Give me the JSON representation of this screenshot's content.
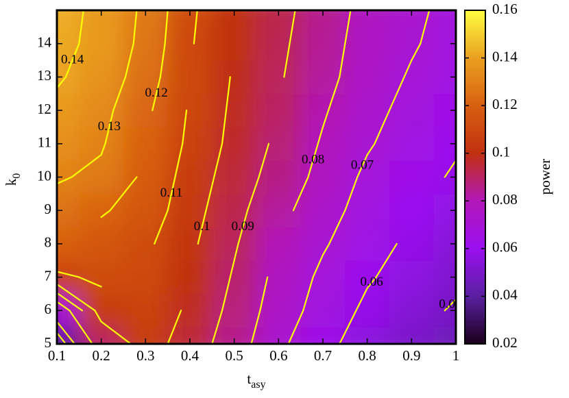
{
  "chart_data": {
    "type": "heatmap",
    "xlabel": "t",
    "xlabel_sub": "asy",
    "ylabel": "k",
    "ylabel_sub": "0",
    "colorbar_label": "power",
    "x": [
      0.1,
      0.2,
      0.3,
      0.4,
      0.5,
      0.6,
      0.7,
      0.8,
      0.9,
      1
    ],
    "y": [
      5,
      6,
      7,
      8,
      9,
      10,
      11,
      12,
      13,
      14,
      15
    ],
    "z": [
      [
        0.04,
        0.09,
        0.105,
        0.095,
        0.085,
        0.072,
        0.063,
        0.055,
        0.05,
        0.046
      ],
      [
        0.07,
        0.105,
        0.108,
        0.098,
        0.087,
        0.075,
        0.066,
        0.058,
        0.053,
        0.049
      ],
      [
        0.108,
        0.112,
        0.11,
        0.1,
        0.089,
        0.077,
        0.068,
        0.061,
        0.056,
        0.052
      ],
      [
        0.12,
        0.116,
        0.112,
        0.102,
        0.091,
        0.08,
        0.071,
        0.064,
        0.058,
        0.054
      ],
      [
        0.126,
        0.121,
        0.116,
        0.104,
        0.093,
        0.083,
        0.074,
        0.066,
        0.06,
        0.057
      ],
      [
        0.131,
        0.128,
        0.118,
        0.106,
        0.095,
        0.086,
        0.077,
        0.068,
        0.063,
        0.059
      ],
      [
        0.135,
        0.131,
        0.12,
        0.108,
        0.097,
        0.088,
        0.079,
        0.071,
        0.065,
        0.061
      ],
      [
        0.138,
        0.133,
        0.122,
        0.109,
        0.098,
        0.09,
        0.081,
        0.073,
        0.067,
        0.063
      ],
      [
        0.141,
        0.136,
        0.125,
        0.11,
        0.099,
        0.091,
        0.083,
        0.075,
        0.069,
        0.065
      ],
      [
        0.142,
        0.138,
        0.127,
        0.111,
        0.1,
        0.092,
        0.084,
        0.076,
        0.071,
        0.066
      ],
      [
        0.143,
        0.138,
        0.128,
        0.112,
        0.1,
        0.093,
        0.085,
        0.077,
        0.072,
        0.067
      ]
    ],
    "contour_levels": [
      0.05,
      0.06,
      0.07,
      0.08,
      0.09,
      0.1,
      0.11,
      0.12,
      0.13,
      0.14
    ],
    "contour_color": "#ffff00",
    "colormap": [
      "#1a001a",
      "#5a1fa0",
      "#9a10f0",
      "#b218b8",
      "#c03010",
      "#d86010",
      "#eaa020",
      "#ffff40"
    ],
    "xlim": [
      0.1,
      1
    ],
    "xticks": [
      0.1,
      0.2,
      0.3,
      0.4,
      0.5,
      0.6,
      0.7,
      0.8,
      0.9,
      1
    ],
    "ylim": [
      5,
      15
    ],
    "yticks": [
      5,
      6,
      7,
      8,
      9,
      10,
      11,
      12,
      13,
      14
    ],
    "zlim": [
      0.02,
      0.16
    ],
    "zticks": [
      0.02,
      0.04,
      0.06,
      0.08,
      0.1,
      0.12,
      0.14,
      0.16
    ]
  }
}
